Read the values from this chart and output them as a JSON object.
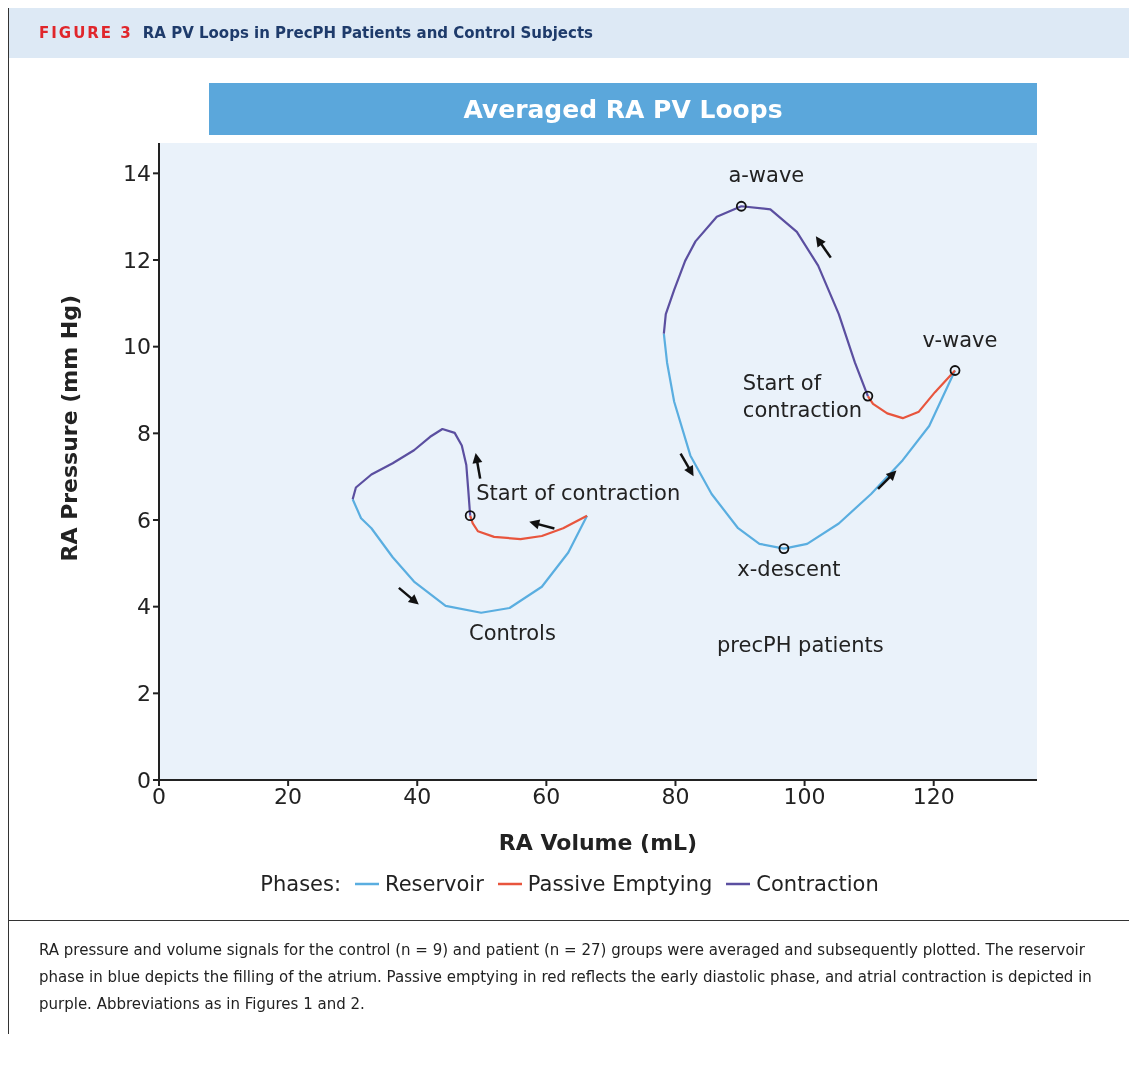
{
  "chart_data": {
    "type": "line",
    "title": "RA PV Loops in PrecPH Patients and Control Subjects",
    "subtitle": "Averaged RA PV Loops",
    "xlabel": "RA Volume (mL)",
    "ylabel": "RA Pressure (mm Hg)",
    "legend_title": "Phases:",
    "legend": "bottom",
    "marker": "none",
    "line_style": "solid",
    "xlim": [
      0,
      136
    ],
    "xticks": [
      0,
      20,
      40,
      60,
      80,
      100,
      120
    ],
    "ylim": [
      0,
      14.7
    ],
    "yticks": [
      0,
      2,
      4,
      6,
      8,
      10,
      12,
      14
    ],
    "series": [
      {
        "name": "Reservoir",
        "color": "#5aaee0",
        "x": [
          30,
          31.3,
          32.9,
          36.2,
          39.5,
          44.4,
          49.9,
          54.3,
          59.3,
          63.4,
          66.3,
          null,
          78.2,
          78.7,
          79.8,
          82.3,
          85.6,
          89.7,
          93,
          96.8,
          100.4,
          105.3,
          110.3,
          115.2,
          119.3,
          123.3
        ],
        "values": [
          6.48,
          6.04,
          5.81,
          5.14,
          4.58,
          4.02,
          3.86,
          3.97,
          4.46,
          5.25,
          6.1,
          null,
          10.3,
          9.63,
          8.73,
          7.49,
          6.6,
          5.81,
          5.45,
          5.34,
          5.45,
          5.92,
          6.6,
          7.38,
          8.17,
          9.45
        ]
      },
      {
        "name": "Passive Emptying",
        "color": "#e8553d",
        "x": [
          66.3,
          62.6,
          59.3,
          56,
          51.9,
          49.4,
          48.6,
          48.2,
          null,
          123.3,
          120.2,
          117.7,
          115.2,
          112.8,
          110.6,
          109.8
        ],
        "values": [
          6.1,
          5.81,
          5.63,
          5.56,
          5.61,
          5.74,
          5.92,
          6.1,
          null,
          9.45,
          8.95,
          8.5,
          8.35,
          8.46,
          8.68,
          8.86
        ]
      },
      {
        "name": "Contraction",
        "color": "#5b4fa0",
        "x": [
          48.2,
          47.9,
          47.6,
          46.9,
          45.8,
          43.9,
          42,
          39.5,
          36.2,
          32.9,
          30.5,
          30,
          null,
          109.8,
          107.8,
          105.3,
          102.1,
          98.8,
          94.7,
          90.2,
          86.4,
          83.1,
          81.5,
          79.8,
          78.5,
          78.2
        ],
        "values": [
          6.1,
          6.7,
          7.27,
          7.72,
          8.01,
          8.1,
          7.92,
          7.61,
          7.31,
          7.05,
          6.75,
          6.48,
          null,
          8.86,
          9.63,
          10.75,
          11.87,
          12.65,
          13.17,
          13.24,
          13,
          12.43,
          11.98,
          11.31,
          10.75,
          10.3
        ]
      }
    ],
    "annotations": [
      "FIGURE 3",
      {
        "text": "Start of contraction",
        "x": 48.2,
        "y": 6.1
      },
      {
        "text": "a-wave",
        "x": 90.2,
        "y": 13.24
      },
      {
        "text": "v-wave",
        "x": 123.3,
        "y": 9.45
      },
      {
        "text": "Start of contraction",
        "x": 109.8,
        "y": 8.86
      },
      {
        "text": "x-descent",
        "x": 96.8,
        "y": 5.34
      },
      "Controls",
      "precPH patients",
      "RA pressure and volume signals for the control (n = 9) and patient (n = 27) groups were averaged and subsequently plotted. The reservoir phase in blue depicts the filling of the atrium. Passive emptying in red reflects the early diastolic phase, and atrial contraction is depicted in purple. Abbreviations as in Figures 1 and 2."
    ]
  }
}
